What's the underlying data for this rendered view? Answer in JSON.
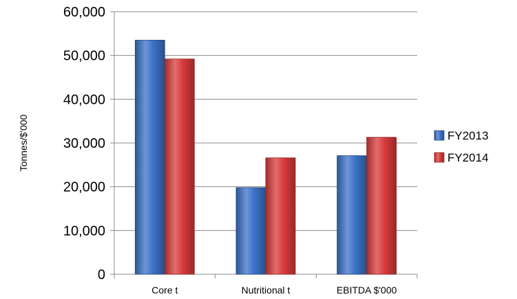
{
  "chart_data": {
    "type": "bar",
    "categories": [
      "Core t",
      "Nutritional t",
      "EBITDA $'000"
    ],
    "series": [
      {
        "name": "FY2013",
        "values": [
          53500,
          19800,
          27100
        ],
        "color": "#3c73c8"
      },
      {
        "name": "FY2014",
        "values": [
          49200,
          26600,
          31300
        ],
        "color": "#d93b3b"
      }
    ],
    "ylabel": "Tonnes/$'000",
    "xlabel": "",
    "ylim": [
      0,
      60000
    ],
    "yticks": [
      0,
      10000,
      20000,
      30000,
      40000,
      50000,
      60000
    ],
    "ytick_labels": [
      "0",
      "10,000",
      "20,000",
      "30,000",
      "40,000",
      "50,000",
      "60,000"
    ],
    "grid": true,
    "legend_position": "right"
  }
}
